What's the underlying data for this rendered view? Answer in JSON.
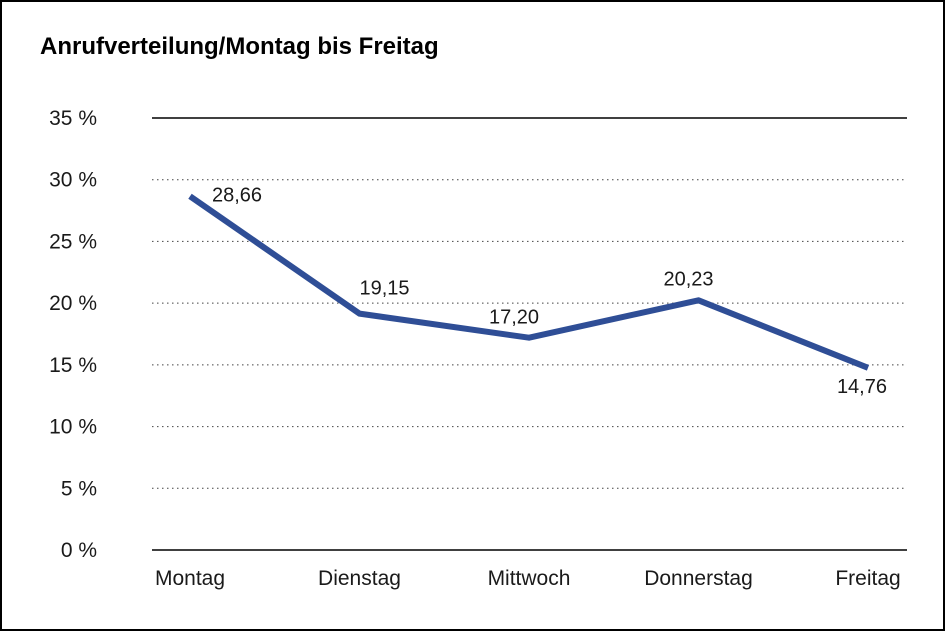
{
  "chart": {
    "title": "Anrufverteilung/Montag bis Freitag"
  },
  "chart_data": {
    "type": "line",
    "title": "Anrufverteilung/Montag bis Freitag",
    "categories": [
      "Montag",
      "Dienstag",
      "Mittwoch",
      "Donnerstag",
      "Freitag"
    ],
    "series": [
      {
        "name": "Anrufverteilung",
        "values": [
          28.66,
          19.15,
          17.2,
          20.23,
          14.76
        ],
        "value_labels": [
          "28,66",
          "19,15",
          "17,20",
          "20,23",
          "14,76"
        ],
        "color": "#2F4E96"
      }
    ],
    "xlabel": "",
    "ylabel": "",
    "ylim": [
      0,
      35
    ],
    "ytick_step": 5,
    "ytick_labels": [
      "0 %",
      "5 %",
      "10 %",
      "15 %",
      "20 %",
      "25 %",
      "30 %",
      "35 %"
    ],
    "grid": "dotted-horizontal",
    "legend": "none",
    "frame_lines": "top-and-bottom-solid"
  }
}
